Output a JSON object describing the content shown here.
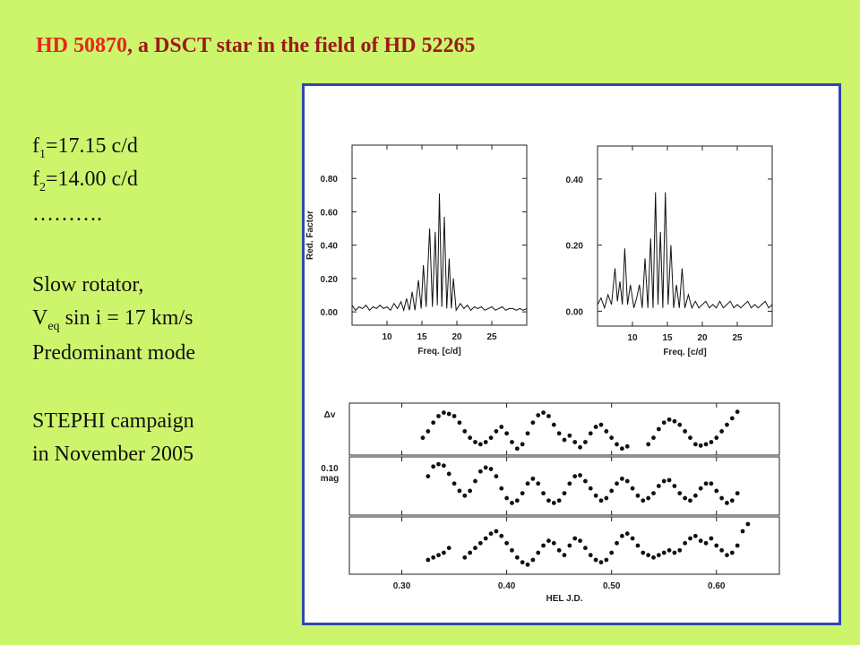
{
  "title": {
    "star": "HD 50870",
    "rest": ", a DSCT star in the field of HD 52265"
  },
  "lines": [
    {
      "text": "f",
      "sub": "1",
      "rest": "=17.15 c/d"
    },
    {
      "text": "f",
      "sub": "2",
      "rest": "=14.00 c/d"
    },
    {
      "text": "………."
    },
    {
      "text": "Slow rotator,"
    },
    {
      "text": "V",
      "sub": "eq",
      "rest": " sin i = 17 km/s"
    },
    {
      "text": "Predominant mode"
    },
    {
      "text": "STEPHI campaign"
    },
    {
      "text": "in November 2005"
    }
  ],
  "figure": {
    "charts": [
      {
        "type": "line",
        "xlabel": "Freq. [c/d]",
        "ylabel": "Red. Factor",
        "xlim": [
          5,
          30
        ],
        "ylim": [
          -0.08,
          1.0
        ],
        "xticks": [
          10,
          15,
          20,
          25
        ],
        "yticks": [
          {
            "value": 0,
            "label": "0.00"
          },
          {
            "value": 0.2,
            "label": "0.20"
          },
          {
            "value": 0.4,
            "label": "0.40"
          },
          {
            "value": 0.6,
            "label": "0.60"
          },
          {
            "value": 0.8,
            "label": "0.80"
          }
        ],
        "x": [
          5,
          5.5,
          6,
          6.5,
          7,
          7.5,
          8,
          8.5,
          9,
          9.5,
          10,
          10.5,
          11,
          11.5,
          12,
          12.4,
          12.8,
          13.2,
          13.6,
          14.0,
          14.5,
          14.9,
          15.2,
          15.6,
          16.1,
          16.5,
          16.9,
          17.2,
          17.5,
          17.85,
          18.2,
          18.55,
          18.9,
          19.2,
          19.5,
          19.9,
          20.5,
          21,
          21.5,
          22,
          22.5,
          23,
          23.5,
          24,
          24.5,
          25,
          25.5,
          26,
          26.5,
          27,
          27.5,
          28,
          28.5,
          29,
          29.5,
          30
        ],
        "values": [
          0.04,
          0.01,
          0.03,
          0.02,
          0.04,
          0.01,
          0.03,
          0.02,
          0.04,
          0.02,
          0.03,
          0.01,
          0.05,
          0.02,
          0.06,
          0.01,
          0.08,
          0.01,
          0.12,
          0.01,
          0.19,
          0.02,
          0.28,
          0.03,
          0.5,
          0.03,
          0.48,
          0.04,
          0.71,
          0.03,
          0.57,
          0.02,
          0.32,
          0.02,
          0.2,
          0.01,
          0.05,
          0.02,
          0.04,
          0.01,
          0.03,
          0.02,
          0.03,
          0.01,
          0.02,
          0.03,
          0.01,
          0.02,
          0.03,
          0.01,
          0.02,
          0.02,
          0.01,
          0.02,
          0.01,
          0.02
        ]
      },
      {
        "type": "line",
        "xlabel": "Freq. [c/d]",
        "xlim": [
          5,
          30
        ],
        "ylim": [
          -0.045,
          0.5
        ],
        "xticks": [
          10,
          15,
          20,
          25
        ],
        "yticks": [
          {
            "value": 0,
            "label": "0.00"
          },
          {
            "value": 0.2,
            "label": "0.20"
          },
          {
            "value": 0.4,
            "label": "0.40"
          }
        ],
        "x": [
          5,
          5.5,
          6,
          6.5,
          7,
          7.5,
          7.85,
          8.2,
          8.55,
          8.9,
          9.3,
          9.7,
          10.2,
          10.6,
          11.0,
          11.4,
          11.8,
          12.2,
          12.6,
          12.95,
          13.3,
          13.65,
          14.0,
          14.35,
          14.7,
          15.1,
          15.5,
          15.9,
          16.3,
          16.7,
          17.1,
          17.5,
          18.0,
          18.5,
          19,
          19.5,
          20,
          20.5,
          21,
          21.5,
          22,
          22.5,
          23,
          23.5,
          24,
          24.5,
          25,
          25.5,
          26,
          26.5,
          27,
          27.5,
          28,
          28.5,
          29,
          29.5,
          30
        ],
        "values": [
          0.02,
          0.04,
          0.01,
          0.05,
          0.02,
          0.13,
          0.03,
          0.09,
          0.02,
          0.19,
          0.02,
          0.08,
          0.01,
          0.04,
          0.08,
          0.01,
          0.16,
          0.01,
          0.22,
          0.01,
          0.36,
          0.02,
          0.24,
          0.01,
          0.36,
          0.02,
          0.2,
          0.01,
          0.08,
          0.01,
          0.13,
          0.01,
          0.05,
          0.01,
          0.03,
          0.01,
          0.02,
          0.03,
          0.01,
          0.02,
          0.01,
          0.03,
          0.01,
          0.02,
          0.03,
          0.01,
          0.02,
          0.01,
          0.02,
          0.03,
          0.01,
          0.02,
          0.01,
          0.02,
          0.03,
          0.01,
          0.02
        ]
      },
      {
        "type": "scatter",
        "xlabel": "HEL J.D.",
        "xlim": [
          0.25,
          0.66
        ],
        "ylim": [
          -0.1,
          1.1
        ],
        "xticks": [
          {
            "value": 0.3,
            "label": "0.30"
          },
          {
            "value": 0.4,
            "label": "0.40"
          },
          {
            "value": 0.5,
            "label": "0.50"
          },
          {
            "value": 0.6,
            "label": "0.60"
          }
        ],
        "panels": [
          {
            "label_lines": [
              "Δv"
            ],
            "x": [
              0.32,
              0.325,
              0.33,
              0.335,
              0.34,
              0.345,
              0.35,
              0.355,
              0.36,
              0.365,
              0.37,
              0.375,
              0.38,
              0.385,
              0.39,
              0.395,
              0.4,
              0.405,
              0.41,
              0.415,
              0.42,
              0.425,
              0.43,
              0.435,
              0.44,
              0.445,
              0.45,
              0.455,
              0.46,
              0.465,
              0.47,
              0.475,
              0.48,
              0.485,
              0.49,
              0.495,
              0.5,
              0.505,
              0.51,
              0.515,
              0.535,
              0.54,
              0.545,
              0.55,
              0.555,
              0.56,
              0.565,
              0.57,
              0.575,
              0.58,
              0.585,
              0.59,
              0.595,
              0.6,
              0.605,
              0.61,
              0.615,
              0.62
            ],
            "values": [
              0.3,
              0.45,
              0.65,
              0.8,
              0.88,
              0.85,
              0.8,
              0.65,
              0.45,
              0.3,
              0.2,
              0.15,
              0.2,
              0.3,
              0.45,
              0.55,
              0.4,
              0.2,
              0.05,
              0.15,
              0.4,
              0.65,
              0.82,
              0.88,
              0.8,
              0.6,
              0.4,
              0.25,
              0.35,
              0.2,
              0.08,
              0.2,
              0.4,
              0.55,
              0.6,
              0.45,
              0.3,
              0.15,
              0.05,
              0.1,
              0.15,
              0.3,
              0.5,
              0.65,
              0.72,
              0.68,
              0.6,
              0.45,
              0.3,
              0.15,
              0.12,
              0.15,
              0.2,
              0.3,
              0.45,
              0.6,
              0.75,
              0.9
            ]
          },
          {
            "label_lines": [
              "0.10",
              "mag"
            ],
            "x": [
              0.325,
              0.33,
              0.335,
              0.34,
              0.345,
              0.35,
              0.355,
              0.36,
              0.365,
              0.37,
              0.375,
              0.38,
              0.385,
              0.39,
              0.395,
              0.4,
              0.405,
              0.41,
              0.415,
              0.42,
              0.425,
              0.43,
              0.435,
              0.44,
              0.445,
              0.45,
              0.455,
              0.46,
              0.465,
              0.47,
              0.475,
              0.48,
              0.485,
              0.49,
              0.495,
              0.5,
              0.505,
              0.51,
              0.515,
              0.52,
              0.525,
              0.53,
              0.535,
              0.54,
              0.545,
              0.55,
              0.555,
              0.56,
              0.565,
              0.57,
              0.575,
              0.58,
              0.585,
              0.59,
              0.595,
              0.6,
              0.605,
              0.61,
              0.615,
              0.62
            ],
            "values": [
              0.7,
              0.9,
              0.95,
              0.92,
              0.75,
              0.55,
              0.4,
              0.3,
              0.4,
              0.6,
              0.8,
              0.88,
              0.85,
              0.7,
              0.45,
              0.25,
              0.15,
              0.2,
              0.35,
              0.55,
              0.65,
              0.55,
              0.35,
              0.2,
              0.15,
              0.2,
              0.35,
              0.55,
              0.7,
              0.72,
              0.6,
              0.45,
              0.3,
              0.2,
              0.25,
              0.4,
              0.55,
              0.65,
              0.6,
              0.45,
              0.3,
              0.2,
              0.25,
              0.35,
              0.5,
              0.6,
              0.62,
              0.5,
              0.35,
              0.25,
              0.2,
              0.3,
              0.45,
              0.55,
              0.55,
              0.4,
              0.25,
              0.15,
              0.2,
              0.35
            ]
          },
          {
            "x": [
              0.325,
              0.33,
              0.335,
              0.34,
              0.345,
              0.36,
              0.365,
              0.37,
              0.375,
              0.38,
              0.385,
              0.39,
              0.395,
              0.4,
              0.405,
              0.41,
              0.415,
              0.42,
              0.425,
              0.43,
              0.435,
              0.44,
              0.445,
              0.45,
              0.455,
              0.46,
              0.465,
              0.47,
              0.475,
              0.48,
              0.485,
              0.49,
              0.495,
              0.5,
              0.505,
              0.51,
              0.515,
              0.52,
              0.525,
              0.53,
              0.535,
              0.54,
              0.545,
              0.55,
              0.555,
              0.56,
              0.565,
              0.57,
              0.575,
              0.58,
              0.585,
              0.59,
              0.595,
              0.6,
              0.605,
              0.61,
              0.615,
              0.62,
              0.625,
              0.63
            ],
            "values": [
              0.2,
              0.25,
              0.3,
              0.35,
              0.45,
              0.25,
              0.35,
              0.45,
              0.55,
              0.65,
              0.75,
              0.8,
              0.7,
              0.55,
              0.4,
              0.25,
              0.15,
              0.1,
              0.2,
              0.35,
              0.5,
              0.6,
              0.55,
              0.4,
              0.3,
              0.5,
              0.65,
              0.6,
              0.45,
              0.3,
              0.2,
              0.15,
              0.2,
              0.35,
              0.55,
              0.7,
              0.75,
              0.65,
              0.5,
              0.35,
              0.3,
              0.25,
              0.3,
              0.35,
              0.4,
              0.35,
              0.4,
              0.55,
              0.65,
              0.7,
              0.6,
              0.55,
              0.65,
              0.5,
              0.4,
              0.3,
              0.35,
              0.5,
              0.8,
              0.95
            ]
          }
        ]
      }
    ]
  }
}
